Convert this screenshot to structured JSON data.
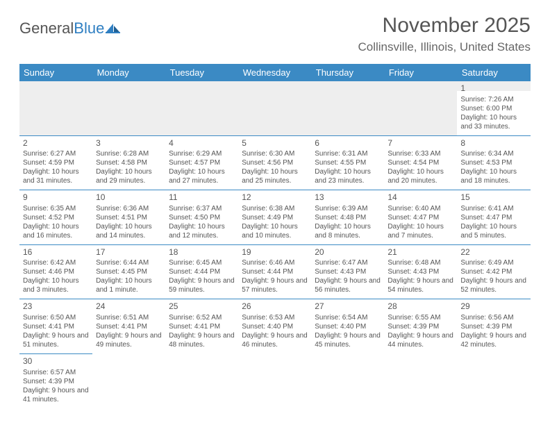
{
  "logo": {
    "part1": "General",
    "part2": "Blue"
  },
  "title": "November 2025",
  "subtitle": "Collinsville, Illinois, United States",
  "colors": {
    "header_bg": "#3b8ac4",
    "header_text": "#ffffff",
    "cell_border": "#3b8ac4",
    "text": "#555555",
    "empty_bg": "#eeeeee",
    "logo_accent": "#2f7fc2"
  },
  "day_headers": [
    "Sunday",
    "Monday",
    "Tuesday",
    "Wednesday",
    "Thursday",
    "Friday",
    "Saturday"
  ],
  "weeks": [
    [
      null,
      null,
      null,
      null,
      null,
      null,
      {
        "n": "1",
        "sunrise": "Sunrise: 7:26 AM",
        "sunset": "Sunset: 6:00 PM",
        "daylight": "Daylight: 10 hours and 33 minutes."
      }
    ],
    [
      {
        "n": "2",
        "sunrise": "Sunrise: 6:27 AM",
        "sunset": "Sunset: 4:59 PM",
        "daylight": "Daylight: 10 hours and 31 minutes."
      },
      {
        "n": "3",
        "sunrise": "Sunrise: 6:28 AM",
        "sunset": "Sunset: 4:58 PM",
        "daylight": "Daylight: 10 hours and 29 minutes."
      },
      {
        "n": "4",
        "sunrise": "Sunrise: 6:29 AM",
        "sunset": "Sunset: 4:57 PM",
        "daylight": "Daylight: 10 hours and 27 minutes."
      },
      {
        "n": "5",
        "sunrise": "Sunrise: 6:30 AM",
        "sunset": "Sunset: 4:56 PM",
        "daylight": "Daylight: 10 hours and 25 minutes."
      },
      {
        "n": "6",
        "sunrise": "Sunrise: 6:31 AM",
        "sunset": "Sunset: 4:55 PM",
        "daylight": "Daylight: 10 hours and 23 minutes."
      },
      {
        "n": "7",
        "sunrise": "Sunrise: 6:33 AM",
        "sunset": "Sunset: 4:54 PM",
        "daylight": "Daylight: 10 hours and 20 minutes."
      },
      {
        "n": "8",
        "sunrise": "Sunrise: 6:34 AM",
        "sunset": "Sunset: 4:53 PM",
        "daylight": "Daylight: 10 hours and 18 minutes."
      }
    ],
    [
      {
        "n": "9",
        "sunrise": "Sunrise: 6:35 AM",
        "sunset": "Sunset: 4:52 PM",
        "daylight": "Daylight: 10 hours and 16 minutes."
      },
      {
        "n": "10",
        "sunrise": "Sunrise: 6:36 AM",
        "sunset": "Sunset: 4:51 PM",
        "daylight": "Daylight: 10 hours and 14 minutes."
      },
      {
        "n": "11",
        "sunrise": "Sunrise: 6:37 AM",
        "sunset": "Sunset: 4:50 PM",
        "daylight": "Daylight: 10 hours and 12 minutes."
      },
      {
        "n": "12",
        "sunrise": "Sunrise: 6:38 AM",
        "sunset": "Sunset: 4:49 PM",
        "daylight": "Daylight: 10 hours and 10 minutes."
      },
      {
        "n": "13",
        "sunrise": "Sunrise: 6:39 AM",
        "sunset": "Sunset: 4:48 PM",
        "daylight": "Daylight: 10 hours and 8 minutes."
      },
      {
        "n": "14",
        "sunrise": "Sunrise: 6:40 AM",
        "sunset": "Sunset: 4:47 PM",
        "daylight": "Daylight: 10 hours and 7 minutes."
      },
      {
        "n": "15",
        "sunrise": "Sunrise: 6:41 AM",
        "sunset": "Sunset: 4:47 PM",
        "daylight": "Daylight: 10 hours and 5 minutes."
      }
    ],
    [
      {
        "n": "16",
        "sunrise": "Sunrise: 6:42 AM",
        "sunset": "Sunset: 4:46 PM",
        "daylight": "Daylight: 10 hours and 3 minutes."
      },
      {
        "n": "17",
        "sunrise": "Sunrise: 6:44 AM",
        "sunset": "Sunset: 4:45 PM",
        "daylight": "Daylight: 10 hours and 1 minute."
      },
      {
        "n": "18",
        "sunrise": "Sunrise: 6:45 AM",
        "sunset": "Sunset: 4:44 PM",
        "daylight": "Daylight: 9 hours and 59 minutes."
      },
      {
        "n": "19",
        "sunrise": "Sunrise: 6:46 AM",
        "sunset": "Sunset: 4:44 PM",
        "daylight": "Daylight: 9 hours and 57 minutes."
      },
      {
        "n": "20",
        "sunrise": "Sunrise: 6:47 AM",
        "sunset": "Sunset: 4:43 PM",
        "daylight": "Daylight: 9 hours and 56 minutes."
      },
      {
        "n": "21",
        "sunrise": "Sunrise: 6:48 AM",
        "sunset": "Sunset: 4:43 PM",
        "daylight": "Daylight: 9 hours and 54 minutes."
      },
      {
        "n": "22",
        "sunrise": "Sunrise: 6:49 AM",
        "sunset": "Sunset: 4:42 PM",
        "daylight": "Daylight: 9 hours and 52 minutes."
      }
    ],
    [
      {
        "n": "23",
        "sunrise": "Sunrise: 6:50 AM",
        "sunset": "Sunset: 4:41 PM",
        "daylight": "Daylight: 9 hours and 51 minutes."
      },
      {
        "n": "24",
        "sunrise": "Sunrise: 6:51 AM",
        "sunset": "Sunset: 4:41 PM",
        "daylight": "Daylight: 9 hours and 49 minutes."
      },
      {
        "n": "25",
        "sunrise": "Sunrise: 6:52 AM",
        "sunset": "Sunset: 4:41 PM",
        "daylight": "Daylight: 9 hours and 48 minutes."
      },
      {
        "n": "26",
        "sunrise": "Sunrise: 6:53 AM",
        "sunset": "Sunset: 4:40 PM",
        "daylight": "Daylight: 9 hours and 46 minutes."
      },
      {
        "n": "27",
        "sunrise": "Sunrise: 6:54 AM",
        "sunset": "Sunset: 4:40 PM",
        "daylight": "Daylight: 9 hours and 45 minutes."
      },
      {
        "n": "28",
        "sunrise": "Sunrise: 6:55 AM",
        "sunset": "Sunset: 4:39 PM",
        "daylight": "Daylight: 9 hours and 44 minutes."
      },
      {
        "n": "29",
        "sunrise": "Sunrise: 6:56 AM",
        "sunset": "Sunset: 4:39 PM",
        "daylight": "Daylight: 9 hours and 42 minutes."
      }
    ],
    [
      {
        "n": "30",
        "sunrise": "Sunrise: 6:57 AM",
        "sunset": "Sunset: 4:39 PM",
        "daylight": "Daylight: 9 hours and 41 minutes."
      },
      null,
      null,
      null,
      null,
      null,
      null
    ]
  ]
}
